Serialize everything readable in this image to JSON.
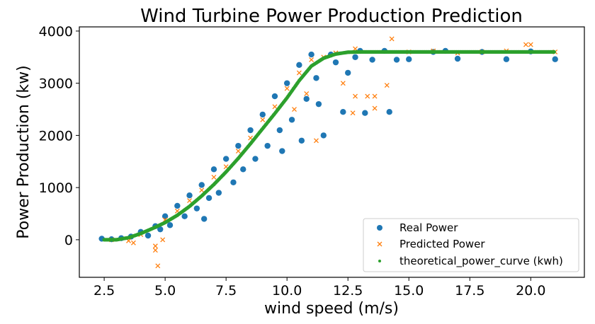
{
  "chart_data": {
    "type": "scatter",
    "title": "Wind Turbine Power Production Prediction",
    "xlabel": "wind speed (m/s)",
    "ylabel": "Power Production (kw)",
    "xlim": [
      1.48,
      22.2
    ],
    "ylim": [
      -720,
      4080
    ],
    "xticks": [
      "2.5",
      "5.0",
      "7.5",
      "10.0",
      "12.5",
      "15.0",
      "17.5",
      "20.0"
    ],
    "yticks": [
      "0",
      "1000",
      "2000",
      "3000",
      "4000"
    ],
    "grid": false,
    "legend_position": "bottom-right",
    "series": [
      {
        "name": "Real Power",
        "marker": "circle",
        "color": "#1f77b4",
        "points": [
          [
            2.4,
            20
          ],
          [
            2.8,
            10
          ],
          [
            3.2,
            30
          ],
          [
            3.6,
            60
          ],
          [
            4.0,
            150
          ],
          [
            4.3,
            80
          ],
          [
            4.6,
            260
          ],
          [
            4.8,
            200
          ],
          [
            5.0,
            450
          ],
          [
            5.2,
            280
          ],
          [
            5.5,
            650
          ],
          [
            5.8,
            450
          ],
          [
            6.0,
            850
          ],
          [
            6.3,
            600
          ],
          [
            6.5,
            1050
          ],
          [
            6.6,
            400
          ],
          [
            6.8,
            800
          ],
          [
            7.0,
            1350
          ],
          [
            7.2,
            900
          ],
          [
            7.5,
            1550
          ],
          [
            7.8,
            1100
          ],
          [
            8.0,
            1800
          ],
          [
            8.2,
            1350
          ],
          [
            8.5,
            2100
          ],
          [
            8.7,
            1550
          ],
          [
            9.0,
            2400
          ],
          [
            9.2,
            1800
          ],
          [
            9.5,
            2750
          ],
          [
            9.7,
            2100
          ],
          [
            9.8,
            1700
          ],
          [
            10.0,
            3000
          ],
          [
            10.2,
            2300
          ],
          [
            10.5,
            3350
          ],
          [
            10.6,
            1900
          ],
          [
            10.8,
            2700
          ],
          [
            11.0,
            3550
          ],
          [
            11.2,
            3100
          ],
          [
            11.3,
            2600
          ],
          [
            11.5,
            2000
          ],
          [
            11.8,
            3550
          ],
          [
            12.0,
            3400
          ],
          [
            12.3,
            2450
          ],
          [
            12.5,
            3200
          ],
          [
            12.8,
            3500
          ],
          [
            13.0,
            3620
          ],
          [
            13.2,
            2430
          ],
          [
            13.5,
            3450
          ],
          [
            14.0,
            3620
          ],
          [
            14.2,
            2450
          ],
          [
            14.5,
            3450
          ],
          [
            15.0,
            3460
          ],
          [
            16.0,
            3600
          ],
          [
            16.5,
            3620
          ],
          [
            17.0,
            3470
          ],
          [
            18.0,
            3600
          ],
          [
            19.0,
            3460
          ],
          [
            20.0,
            3610
          ],
          [
            21.0,
            3460
          ]
        ]
      },
      {
        "name": "Predicted Power",
        "marker": "x",
        "color": "#ff7f0e",
        "points": [
          [
            2.8,
            0
          ],
          [
            3.5,
            -20
          ],
          [
            3.7,
            -60
          ],
          [
            4.0,
            100
          ],
          [
            4.6,
            -200
          ],
          [
            4.6,
            -120
          ],
          [
            4.7,
            -500
          ],
          [
            4.9,
            0
          ],
          [
            5.0,
            380
          ],
          [
            5.5,
            550
          ],
          [
            6.0,
            750
          ],
          [
            6.5,
            950
          ],
          [
            7.0,
            1200
          ],
          [
            7.5,
            1400
          ],
          [
            8.0,
            1700
          ],
          [
            8.5,
            1950
          ],
          [
            9.0,
            2300
          ],
          [
            9.5,
            2550
          ],
          [
            10.0,
            2900
          ],
          [
            10.3,
            2500
          ],
          [
            10.5,
            3200
          ],
          [
            10.8,
            2800
          ],
          [
            11.0,
            3450
          ],
          [
            11.2,
            1900
          ],
          [
            11.5,
            3500
          ],
          [
            12.0,
            3580
          ],
          [
            12.3,
            3000
          ],
          [
            12.7,
            2430
          ],
          [
            12.8,
            2750
          ],
          [
            12.8,
            3660
          ],
          [
            13.3,
            2750
          ],
          [
            13.6,
            2750
          ],
          [
            13.6,
            2520
          ],
          [
            14.1,
            2960
          ],
          [
            14.3,
            3850
          ],
          [
            15.0,
            3600
          ],
          [
            16.0,
            3620
          ],
          [
            17.0,
            3580
          ],
          [
            18.0,
            3600
          ],
          [
            19.0,
            3620
          ],
          [
            19.8,
            3740
          ],
          [
            20.0,
            3740
          ],
          [
            21.0,
            3600
          ]
        ]
      },
      {
        "name": "theoretical_power_curve (kwh)",
        "marker": "dot",
        "color": "#2ca02c",
        "points": [
          [
            2.5,
            0
          ],
          [
            3.0,
            0
          ],
          [
            3.5,
            40
          ],
          [
            4.0,
            120
          ],
          [
            4.5,
            220
          ],
          [
            5.0,
            330
          ],
          [
            5.5,
            470
          ],
          [
            6.0,
            640
          ],
          [
            6.5,
            840
          ],
          [
            7.0,
            1060
          ],
          [
            7.5,
            1300
          ],
          [
            8.0,
            1560
          ],
          [
            8.5,
            1840
          ],
          [
            9.0,
            2130
          ],
          [
            9.5,
            2420
          ],
          [
            10.0,
            2720
          ],
          [
            10.5,
            3050
          ],
          [
            11.0,
            3330
          ],
          [
            11.5,
            3480
          ],
          [
            12.0,
            3560
          ],
          [
            12.5,
            3595
          ],
          [
            13.0,
            3600
          ],
          [
            15.0,
            3600
          ],
          [
            17.0,
            3600
          ],
          [
            19.0,
            3600
          ],
          [
            21.0,
            3600
          ]
        ]
      }
    ]
  }
}
